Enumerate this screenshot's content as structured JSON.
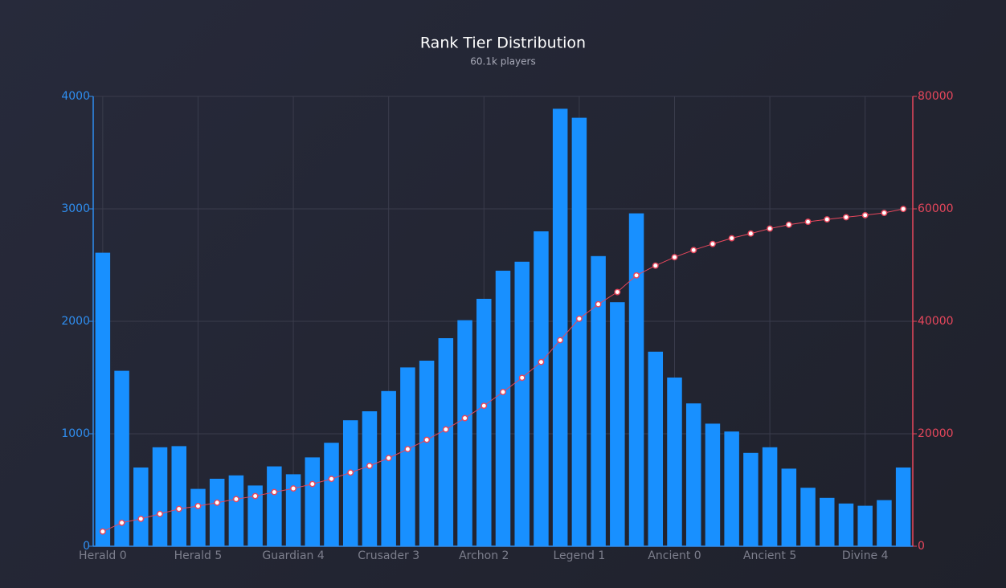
{
  "chart_data": {
    "type": "bar-line",
    "title": "Rank Tier Distribution",
    "subtitle": "60.1k players",
    "categories": [
      "Herald 0",
      null,
      null,
      null,
      null,
      "Herald 5",
      null,
      null,
      null,
      null,
      "Guardian 4",
      null,
      null,
      null,
      null,
      "Crusader 3",
      null,
      null,
      null,
      null,
      "Archon 2",
      null,
      null,
      null,
      null,
      "Legend 1",
      null,
      null,
      null,
      null,
      "Ancient 0",
      null,
      null,
      null,
      null,
      "Ancient 5",
      null,
      null,
      null,
      null,
      "Divine 4",
      null,
      null
    ],
    "series": [
      {
        "type": "bar",
        "color": "#1890ff",
        "values": [
          2610,
          1560,
          700,
          880,
          890,
          510,
          600,
          630,
          540,
          710,
          640,
          790,
          920,
          1120,
          1200,
          1380,
          1590,
          1650,
          1850,
          2010,
          2200,
          2450,
          2530,
          2800,
          3890,
          3810,
          2580,
          2170,
          2960,
          1730,
          1500,
          1270,
          1090,
          1020,
          830,
          880,
          690,
          520,
          430,
          380,
          360,
          410,
          700
        ]
      },
      {
        "type": "line",
        "axis": "y2",
        "color": "#e8475c",
        "values": [
          2610,
          4170,
          4870,
          5750,
          6640,
          7150,
          7750,
          8380,
          8920,
          9630,
          10270,
          11060,
          11980,
          13100,
          14300,
          15680,
          17270,
          18920,
          20770,
          22780,
          24980,
          27430,
          29960,
          32760,
          36650,
          40460,
          43040,
          45210,
          48170,
          49900,
          51400,
          52670,
          53760,
          54780,
          55610,
          56490,
          57180,
          57700,
          58130,
          58510,
          58870,
          59280,
          59980
        ]
      }
    ],
    "ylim": [
      0,
      4000
    ],
    "yticks": [
      0,
      1000,
      2000,
      3000,
      4000
    ],
    "y2lim": [
      0,
      80000
    ],
    "y2ticks": [
      0,
      20000,
      40000,
      60000,
      80000
    ],
    "ycolor": "#2f8ef0",
    "y2color": "#e8475c",
    "grid": true
  }
}
